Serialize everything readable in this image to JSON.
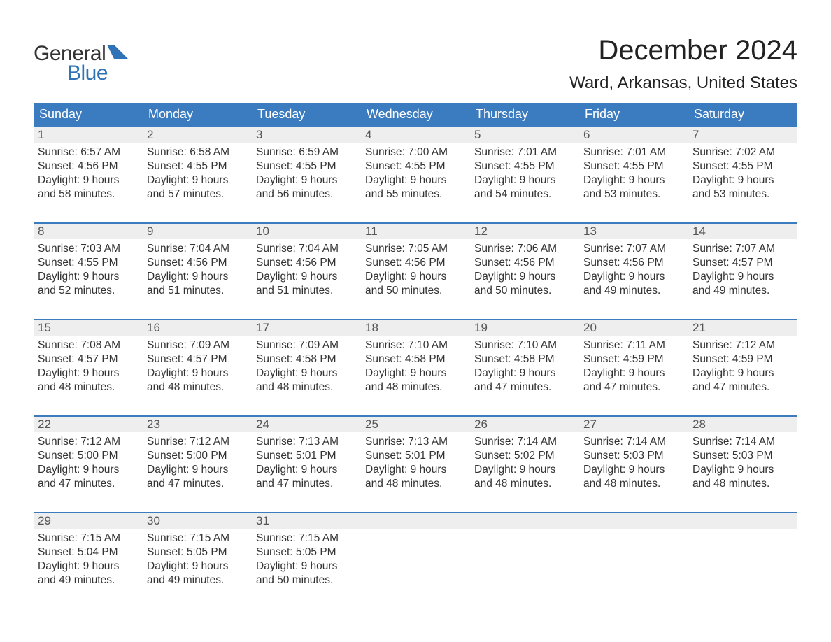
{
  "brand": {
    "word1": "General",
    "word2": "Blue",
    "text_color": "#333333",
    "accent_color": "#2f72b6"
  },
  "title": "December 2024",
  "location": "Ward, Arkansas, United States",
  "header_bg": "#3b7bbf",
  "header_text_color": "#ffffff",
  "band_bg": "#eeeeee",
  "band_text_color": "#555555",
  "body_text_color": "#333333",
  "week_border_color": "#3b7bbf",
  "page_bg": "#ffffff",
  "font": {
    "title_size": 40,
    "location_size": 24,
    "dayname_size": 18,
    "daynum_size": 17,
    "body_size": 15.5
  },
  "day_names": [
    "Sunday",
    "Monday",
    "Tuesday",
    "Wednesday",
    "Thursday",
    "Friday",
    "Saturday"
  ],
  "labels": {
    "sunrise": "Sunrise:",
    "sunset": "Sunset:",
    "daylight": "Daylight:"
  },
  "weeks": [
    [
      {
        "n": "1",
        "sunrise": "6:57 AM",
        "sunset": "4:56 PM",
        "day_h": "9 hours",
        "day_m": "and 58 minutes."
      },
      {
        "n": "2",
        "sunrise": "6:58 AM",
        "sunset": "4:55 PM",
        "day_h": "9 hours",
        "day_m": "and 57 minutes."
      },
      {
        "n": "3",
        "sunrise": "6:59 AM",
        "sunset": "4:55 PM",
        "day_h": "9 hours",
        "day_m": "and 56 minutes."
      },
      {
        "n": "4",
        "sunrise": "7:00 AM",
        "sunset": "4:55 PM",
        "day_h": "9 hours",
        "day_m": "and 55 minutes."
      },
      {
        "n": "5",
        "sunrise": "7:01 AM",
        "sunset": "4:55 PM",
        "day_h": "9 hours",
        "day_m": "and 54 minutes."
      },
      {
        "n": "6",
        "sunrise": "7:01 AM",
        "sunset": "4:55 PM",
        "day_h": "9 hours",
        "day_m": "and 53 minutes."
      },
      {
        "n": "7",
        "sunrise": "7:02 AM",
        "sunset": "4:55 PM",
        "day_h": "9 hours",
        "day_m": "and 53 minutes."
      }
    ],
    [
      {
        "n": "8",
        "sunrise": "7:03 AM",
        "sunset": "4:55 PM",
        "day_h": "9 hours",
        "day_m": "and 52 minutes."
      },
      {
        "n": "9",
        "sunrise": "7:04 AM",
        "sunset": "4:56 PM",
        "day_h": "9 hours",
        "day_m": "and 51 minutes."
      },
      {
        "n": "10",
        "sunrise": "7:04 AM",
        "sunset": "4:56 PM",
        "day_h": "9 hours",
        "day_m": "and 51 minutes."
      },
      {
        "n": "11",
        "sunrise": "7:05 AM",
        "sunset": "4:56 PM",
        "day_h": "9 hours",
        "day_m": "and 50 minutes."
      },
      {
        "n": "12",
        "sunrise": "7:06 AM",
        "sunset": "4:56 PM",
        "day_h": "9 hours",
        "day_m": "and 50 minutes."
      },
      {
        "n": "13",
        "sunrise": "7:07 AM",
        "sunset": "4:56 PM",
        "day_h": "9 hours",
        "day_m": "and 49 minutes."
      },
      {
        "n": "14",
        "sunrise": "7:07 AM",
        "sunset": "4:57 PM",
        "day_h": "9 hours",
        "day_m": "and 49 minutes."
      }
    ],
    [
      {
        "n": "15",
        "sunrise": "7:08 AM",
        "sunset": "4:57 PM",
        "day_h": "9 hours",
        "day_m": "and 48 minutes."
      },
      {
        "n": "16",
        "sunrise": "7:09 AM",
        "sunset": "4:57 PM",
        "day_h": "9 hours",
        "day_m": "and 48 minutes."
      },
      {
        "n": "17",
        "sunrise": "7:09 AM",
        "sunset": "4:58 PM",
        "day_h": "9 hours",
        "day_m": "and 48 minutes."
      },
      {
        "n": "18",
        "sunrise": "7:10 AM",
        "sunset": "4:58 PM",
        "day_h": "9 hours",
        "day_m": "and 48 minutes."
      },
      {
        "n": "19",
        "sunrise": "7:10 AM",
        "sunset": "4:58 PM",
        "day_h": "9 hours",
        "day_m": "and 47 minutes."
      },
      {
        "n": "20",
        "sunrise": "7:11 AM",
        "sunset": "4:59 PM",
        "day_h": "9 hours",
        "day_m": "and 47 minutes."
      },
      {
        "n": "21",
        "sunrise": "7:12 AM",
        "sunset": "4:59 PM",
        "day_h": "9 hours",
        "day_m": "and 47 minutes."
      }
    ],
    [
      {
        "n": "22",
        "sunrise": "7:12 AM",
        "sunset": "5:00 PM",
        "day_h": "9 hours",
        "day_m": "and 47 minutes."
      },
      {
        "n": "23",
        "sunrise": "7:12 AM",
        "sunset": "5:00 PM",
        "day_h": "9 hours",
        "day_m": "and 47 minutes."
      },
      {
        "n": "24",
        "sunrise": "7:13 AM",
        "sunset": "5:01 PM",
        "day_h": "9 hours",
        "day_m": "and 47 minutes."
      },
      {
        "n": "25",
        "sunrise": "7:13 AM",
        "sunset": "5:01 PM",
        "day_h": "9 hours",
        "day_m": "and 48 minutes."
      },
      {
        "n": "26",
        "sunrise": "7:14 AM",
        "sunset": "5:02 PM",
        "day_h": "9 hours",
        "day_m": "and 48 minutes."
      },
      {
        "n": "27",
        "sunrise": "7:14 AM",
        "sunset": "5:03 PM",
        "day_h": "9 hours",
        "day_m": "and 48 minutes."
      },
      {
        "n": "28",
        "sunrise": "7:14 AM",
        "sunset": "5:03 PM",
        "day_h": "9 hours",
        "day_m": "and 48 minutes."
      }
    ],
    [
      {
        "n": "29",
        "sunrise": "7:15 AM",
        "sunset": "5:04 PM",
        "day_h": "9 hours",
        "day_m": "and 49 minutes."
      },
      {
        "n": "30",
        "sunrise": "7:15 AM",
        "sunset": "5:05 PM",
        "day_h": "9 hours",
        "day_m": "and 49 minutes."
      },
      {
        "n": "31",
        "sunrise": "7:15 AM",
        "sunset": "5:05 PM",
        "day_h": "9 hours",
        "day_m": "and 50 minutes."
      },
      {
        "empty": true
      },
      {
        "empty": true
      },
      {
        "empty": true
      },
      {
        "empty": true
      }
    ]
  ]
}
